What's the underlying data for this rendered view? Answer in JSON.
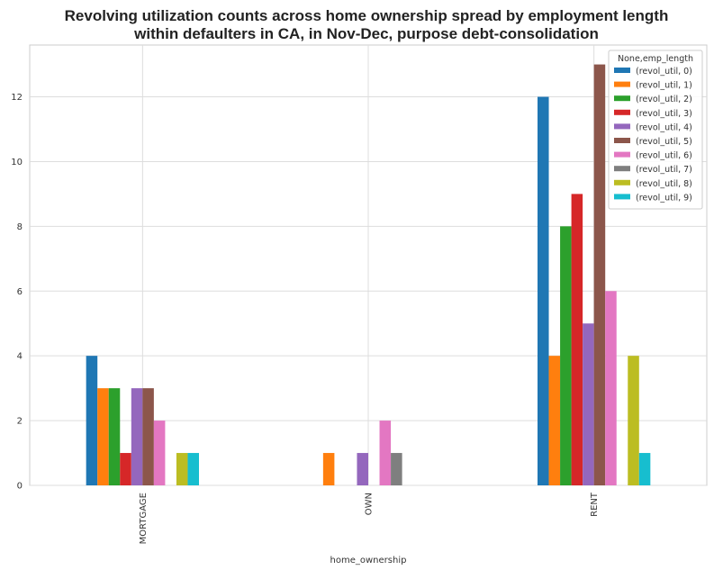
{
  "chart_data": {
    "type": "bar",
    "title_lines": [
      "Revolving utilization counts across home ownership spread by employment length",
      "within defaulters in CA, in Nov-Dec, purpose debt-consolidation"
    ],
    "xlabel": "home_ownership",
    "ylabel": "",
    "categories": [
      "MORTGAGE",
      "OWN",
      "RENT"
    ],
    "ylim": [
      0,
      13.6
    ],
    "yticks": [
      0,
      2,
      4,
      6,
      8,
      10,
      12
    ],
    "grid": true,
    "legend": {
      "title": "None,emp_length",
      "placement": "top-right"
    },
    "series": [
      {
        "name": "(revol_util, 0)",
        "color": "#1f77b4",
        "values": [
          4,
          0,
          12
        ]
      },
      {
        "name": "(revol_util, 1)",
        "color": "#ff7f0e",
        "values": [
          3,
          1,
          4
        ]
      },
      {
        "name": "(revol_util, 2)",
        "color": "#2ca02c",
        "values": [
          3,
          0,
          8
        ]
      },
      {
        "name": "(revol_util, 3)",
        "color": "#d62728",
        "values": [
          1,
          0,
          9
        ]
      },
      {
        "name": "(revol_util, 4)",
        "color": "#9467bd",
        "values": [
          3,
          1,
          5
        ]
      },
      {
        "name": "(revol_util, 5)",
        "color": "#8c564b",
        "values": [
          3,
          0,
          13
        ]
      },
      {
        "name": "(revol_util, 6)",
        "color": "#e377c2",
        "values": [
          2,
          2,
          6
        ]
      },
      {
        "name": "(revol_util, 7)",
        "color": "#7f7f7f",
        "values": [
          0,
          1,
          0
        ]
      },
      {
        "name": "(revol_util, 8)",
        "color": "#bcbd22",
        "values": [
          1,
          0,
          4
        ]
      },
      {
        "name": "(revol_util, 9)",
        "color": "#17becf",
        "values": [
          1,
          0,
          1
        ]
      }
    ]
  }
}
